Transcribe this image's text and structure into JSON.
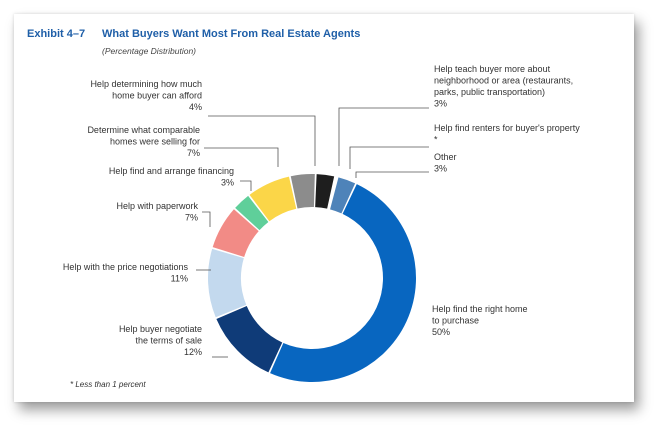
{
  "exhibit_label": "Exhibit 4–7",
  "footnote": "* Less than 1 percent",
  "chart_data": {
    "type": "pie",
    "title": "What Buyers Want Most From Real Estate Agents",
    "subtitle": "(Percentage Distribution)",
    "donut": true,
    "slices": [
      {
        "label_lines": [
          "Help  find the right home",
          "to purchase"
        ],
        "value": 50,
        "value_label": "50%",
        "color": "#0866c0"
      },
      {
        "label_lines": [
          "Help buyer negotiate",
          "the terms of sale"
        ],
        "value": 12,
        "value_label": "12%",
        "color": "#0f3b78"
      },
      {
        "label_lines": [
          "Help with the price negotiations"
        ],
        "value": 11,
        "value_label": "11%",
        "color": "#c3d9ee"
      },
      {
        "label_lines": [
          "Help with paperwork"
        ],
        "value": 7,
        "value_label": "7%",
        "color": "#f28b86"
      },
      {
        "label_lines": [
          "Help  find and arrange    financing"
        ],
        "value": 3,
        "value_label": "3%",
        "color": "#5fcf9a"
      },
      {
        "label_lines": [
          "Determine what comparable",
          "homes were selling for"
        ],
        "value": 7,
        "value_label": "7%",
        "color": "#fbd648"
      },
      {
        "label_lines": [
          "Help determining how much",
          "home buyer can afford"
        ],
        "value": 4,
        "value_label": "4%",
        "color": "#8c8c8c"
      },
      {
        "label_lines": [
          "Help teach buyer more about",
          "neighborhood or area (restaurants,",
          "parks, public transportation)"
        ],
        "value": 3,
        "value_label": "3%",
        "color": "#1e1e1e"
      },
      {
        "label_lines": [
          "Help find renters for buyer's property"
        ],
        "value": 0.4,
        "value_label": "*",
        "color": "#ffffff"
      },
      {
        "label_lines": [
          "Other"
        ],
        "value": 3,
        "value_label": "3%",
        "color": "#4e83b9"
      }
    ]
  }
}
